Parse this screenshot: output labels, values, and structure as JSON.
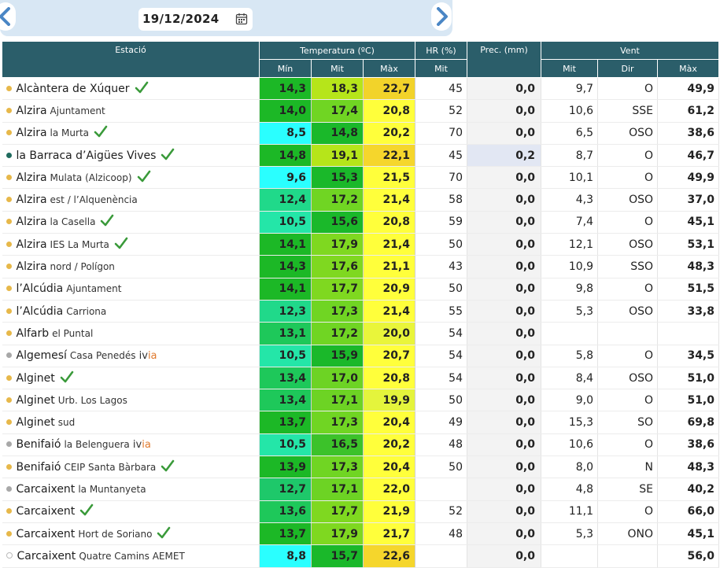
{
  "date_picker": {
    "date": "19/12/2024",
    "prev_icon": "chevron-left-icon",
    "next_icon": "chevron-right-icon",
    "calendar_icon": "calendar-icon"
  },
  "colors": {
    "header_bg": "#2b5e6a",
    "dot_yellow": "#e7b84a",
    "dot_teal": "#1f6b5e",
    "dot_gray": "#a8a8a8",
    "check_green": "#3a9a3a",
    "ivia_accent": "#e07a2e",
    "prec_highlight": "#e2e7f3"
  },
  "table": {
    "headers": {
      "station": "Estació",
      "temperature": "Temperatura (ºC)",
      "humidity": "HR (%)",
      "precipitation": "Prec. (mm)",
      "wind": "Vent",
      "min": "Mín",
      "avg": "Mit",
      "max": "Màx",
      "hr_avg": "Mit",
      "wind_avg": "Mit",
      "wind_dir": "Dir",
      "wind_max": "Màx"
    },
    "rows": [
      {
        "name": "Alcàntera de Xúquer",
        "sub": "",
        "dot": "yellow",
        "check": true,
        "ivia": false,
        "tmin": "14,3",
        "tmit": "18,3",
        "tmax": "22,7",
        "hr": "45",
        "prec": "0,0",
        "vmit": "9,7",
        "vdir": "O",
        "vmax": "49,9",
        "c1": "#1cb826",
        "c2": "#b6e51a",
        "c3": "#f2d32a",
        "prec_hl": false
      },
      {
        "name": "Alzira",
        "sub": "Ajuntament",
        "dot": "yellow",
        "check": false,
        "ivia": false,
        "tmin": "14,0",
        "tmit": "17,4",
        "tmax": "20,8",
        "hr": "52",
        "prec": "0,0",
        "vmit": "10,6",
        "vdir": "SSE",
        "vmax": "61,2",
        "c1": "#1cb826",
        "c2": "#70d523",
        "c3": "#ffff3b",
        "prec_hl": false
      },
      {
        "name": "Alzira",
        "sub": "la Murta",
        "dot": "yellow",
        "check": true,
        "ivia": false,
        "tmin": "8,5",
        "tmit": "14,8",
        "tmax": "20,2",
        "hr": "70",
        "prec": "0,0",
        "vmit": "6,5",
        "vdir": "OSO",
        "vmax": "38,6",
        "c1": "#2affff",
        "c2": "#1ab82a",
        "c3": "#ffff3b",
        "prec_hl": false
      },
      {
        "name": "la Barraca d’Aigües Vives",
        "sub": "",
        "dot": "teal",
        "check": true,
        "ivia": false,
        "tmin": "14,8",
        "tmit": "19,1",
        "tmax": "22,1",
        "hr": "45",
        "prec": "0,2",
        "vmit": "8,7",
        "vdir": "O",
        "vmax": "46,7",
        "c1": "#1cb826",
        "c2": "#b6e51a",
        "c3": "#f5d62c",
        "prec_hl": true
      },
      {
        "name": "Alzira",
        "sub": "Mulata (Alzicoop)",
        "dot": "yellow",
        "check": true,
        "ivia": false,
        "tmin": "9,6",
        "tmit": "15,3",
        "tmax": "21,5",
        "hr": "70",
        "prec": "0,0",
        "vmit": "10,1",
        "vdir": "O",
        "vmax": "49,9",
        "c1": "#2affff",
        "c2": "#1ab82a",
        "c3": "#ffff3b",
        "prec_hl": false
      },
      {
        "name": "Alzira",
        "sub": "est / l’Alquenència",
        "dot": "yellow",
        "check": false,
        "ivia": false,
        "tmin": "12,4",
        "tmit": "17,2",
        "tmax": "21,4",
        "hr": "58",
        "prec": "0,0",
        "vmit": "4,3",
        "vdir": "OSO",
        "vmax": "37,0",
        "c1": "#20d98a",
        "c2": "#70d523",
        "c3": "#ffff3b",
        "prec_hl": false
      },
      {
        "name": "Alzira",
        "sub": "la Casella",
        "dot": "yellow",
        "check": true,
        "ivia": false,
        "tmin": "10,5",
        "tmit": "15,6",
        "tmax": "20,8",
        "hr": "59",
        "prec": "0,0",
        "vmit": "7,4",
        "vdir": "O",
        "vmax": "45,1",
        "c1": "#24e6a8",
        "c2": "#1ab82a",
        "c3": "#ffff3b",
        "prec_hl": false
      },
      {
        "name": "Alzira",
        "sub": "IES La Murta",
        "dot": "yellow",
        "check": true,
        "ivia": false,
        "tmin": "14,1",
        "tmit": "17,9",
        "tmax": "21,4",
        "hr": "50",
        "prec": "0,0",
        "vmit": "12,1",
        "vdir": "OSO",
        "vmax": "53,1",
        "c1": "#1cb826",
        "c2": "#7fd820",
        "c3": "#ffff3b",
        "prec_hl": false
      },
      {
        "name": "Alzira",
        "sub": "nord / Polígon",
        "dot": "yellow",
        "check": false,
        "ivia": false,
        "tmin": "14,3",
        "tmit": "17,6",
        "tmax": "21,1",
        "hr": "43",
        "prec": "0,0",
        "vmit": "10,9",
        "vdir": "SSO",
        "vmax": "48,3",
        "c1": "#1cb826",
        "c2": "#7fd820",
        "c3": "#ffff3b",
        "prec_hl": false
      },
      {
        "name": "l’Alcúdia",
        "sub": "Ajuntament",
        "dot": "yellow",
        "check": false,
        "ivia": false,
        "tmin": "14,1",
        "tmit": "17,7",
        "tmax": "20,9",
        "hr": "50",
        "prec": "0,0",
        "vmit": "9,8",
        "vdir": "O",
        "vmax": "51,5",
        "c1": "#1cb826",
        "c2": "#7fd820",
        "c3": "#ffff3b",
        "prec_hl": false
      },
      {
        "name": "l’Alcúdia",
        "sub": "Carriona",
        "dot": "yellow",
        "check": false,
        "ivia": false,
        "tmin": "12,3",
        "tmit": "17,3",
        "tmax": "21,4",
        "hr": "55",
        "prec": "0,0",
        "vmit": "5,3",
        "vdir": "OSO",
        "vmax": "33,8",
        "c1": "#20d98a",
        "c2": "#70d523",
        "c3": "#ffff3b",
        "prec_hl": false
      },
      {
        "name": "Alfarb",
        "sub": "el Puntal",
        "dot": "yellow",
        "check": false,
        "ivia": false,
        "tmin": "13,1",
        "tmit": "17,2",
        "tmax": "20,0",
        "hr": "54",
        "prec": "0,0",
        "vmit": "",
        "vdir": "",
        "vmax": "",
        "c1": "#1ec85a",
        "c2": "#70d523",
        "c3": "#e9f53a",
        "prec_hl": false
      },
      {
        "name": "Algemesí",
        "sub": "Casa Penedés",
        "dot": "gray",
        "check": false,
        "ivia": true,
        "tmin": "10,5",
        "tmit": "15,9",
        "tmax": "20,7",
        "hr": "54",
        "prec": "0,0",
        "vmit": "5,8",
        "vdir": "O",
        "vmax": "34,5",
        "c1": "#24e6a8",
        "c2": "#1ab82a",
        "c3": "#ffff3b",
        "prec_hl": false
      },
      {
        "name": "Alginet",
        "sub": "",
        "dot": "yellow",
        "check": true,
        "ivia": false,
        "tmin": "13,4",
        "tmit": "17,0",
        "tmax": "20,8",
        "hr": "54",
        "prec": "0,0",
        "vmit": "8,4",
        "vdir": "OSO",
        "vmax": "51,0",
        "c1": "#1ec85a",
        "c2": "#6dd324",
        "c3": "#ffff3b",
        "prec_hl": false
      },
      {
        "name": "Alginet",
        "sub": "Urb. Los Lagos",
        "dot": "yellow",
        "check": false,
        "ivia": false,
        "tmin": "13,4",
        "tmit": "17,1",
        "tmax": "19,9",
        "hr": "50",
        "prec": "0,0",
        "vmit": "9,0",
        "vdir": "O",
        "vmax": "51,0",
        "c1": "#1ec85a",
        "c2": "#6dd324",
        "c3": "#e4f43c",
        "prec_hl": false
      },
      {
        "name": "Alginet",
        "sub": "sud",
        "dot": "yellow",
        "check": false,
        "ivia": false,
        "tmin": "13,7",
        "tmit": "17,3",
        "tmax": "20,4",
        "hr": "49",
        "prec": "0,0",
        "vmit": "15,3",
        "vdir": "SO",
        "vmax": "69,8",
        "c1": "#1cb826",
        "c2": "#70d523",
        "c3": "#ffff3b",
        "prec_hl": false
      },
      {
        "name": "Benifaió",
        "sub": "la Belenguera",
        "dot": "gray",
        "check": false,
        "ivia": true,
        "tmin": "10,5",
        "tmit": "16,5",
        "tmax": "20,2",
        "hr": "48",
        "prec": "0,0",
        "vmit": "10,6",
        "vdir": "O",
        "vmax": "38,6",
        "c1": "#24e6a8",
        "c2": "#3cc22a",
        "c3": "#ffff3b",
        "prec_hl": false
      },
      {
        "name": "Benifaió",
        "sub": "CEIP Santa Bàrbara",
        "dot": "yellow",
        "check": true,
        "ivia": false,
        "tmin": "13,9",
        "tmit": "17,3",
        "tmax": "20,4",
        "hr": "50",
        "prec": "0,0",
        "vmit": "8,0",
        "vdir": "N",
        "vmax": "48,3",
        "c1": "#1cb826",
        "c2": "#70d523",
        "c3": "#ffff3b",
        "prec_hl": false
      },
      {
        "name": "Carcaixent",
        "sub": "la Muntanyeta",
        "dot": "gray",
        "check": false,
        "ivia": false,
        "tmin": "12,7",
        "tmit": "17,1",
        "tmax": "22,0",
        "hr": "",
        "prec": "0,0",
        "vmit": "4,8",
        "vdir": "SE",
        "vmax": "40,2",
        "c1": "#1ec86a",
        "c2": "#6dd324",
        "c3": "#ffff3b",
        "prec_hl": false
      },
      {
        "name": "Carcaixent",
        "sub": "",
        "dot": "yellow",
        "check": true,
        "ivia": false,
        "tmin": "13,6",
        "tmit": "17,7",
        "tmax": "21,9",
        "hr": "52",
        "prec": "0,0",
        "vmit": "11,1",
        "vdir": "O",
        "vmax": "66,0",
        "c1": "#1ec85a",
        "c2": "#7fd820",
        "c3": "#ffff3b",
        "prec_hl": false
      },
      {
        "name": "Carcaixent",
        "sub": "Hort de Soriano",
        "dot": "yellow",
        "check": true,
        "ivia": false,
        "tmin": "13,7",
        "tmit": "17,9",
        "tmax": "21,7",
        "hr": "48",
        "prec": "0,0",
        "vmit": "5,3",
        "vdir": "ONO",
        "vmax": "45,1",
        "c1": "#1cb826",
        "c2": "#7fd820",
        "c3": "#ffff3b",
        "prec_hl": false
      },
      {
        "name": "Carcaixent",
        "sub": "Quatre Camins AEMET",
        "dot": "hollow",
        "check": false,
        "ivia": false,
        "tmin": "8,8",
        "tmit": "15,7",
        "tmax": "22,6",
        "hr": "",
        "prec": "0,0",
        "vmit": "",
        "vdir": "",
        "vmax": "56,0",
        "c1": "#2affff",
        "c2": "#1ab82a",
        "c3": "#f5d62c",
        "prec_hl": false
      }
    ]
  }
}
